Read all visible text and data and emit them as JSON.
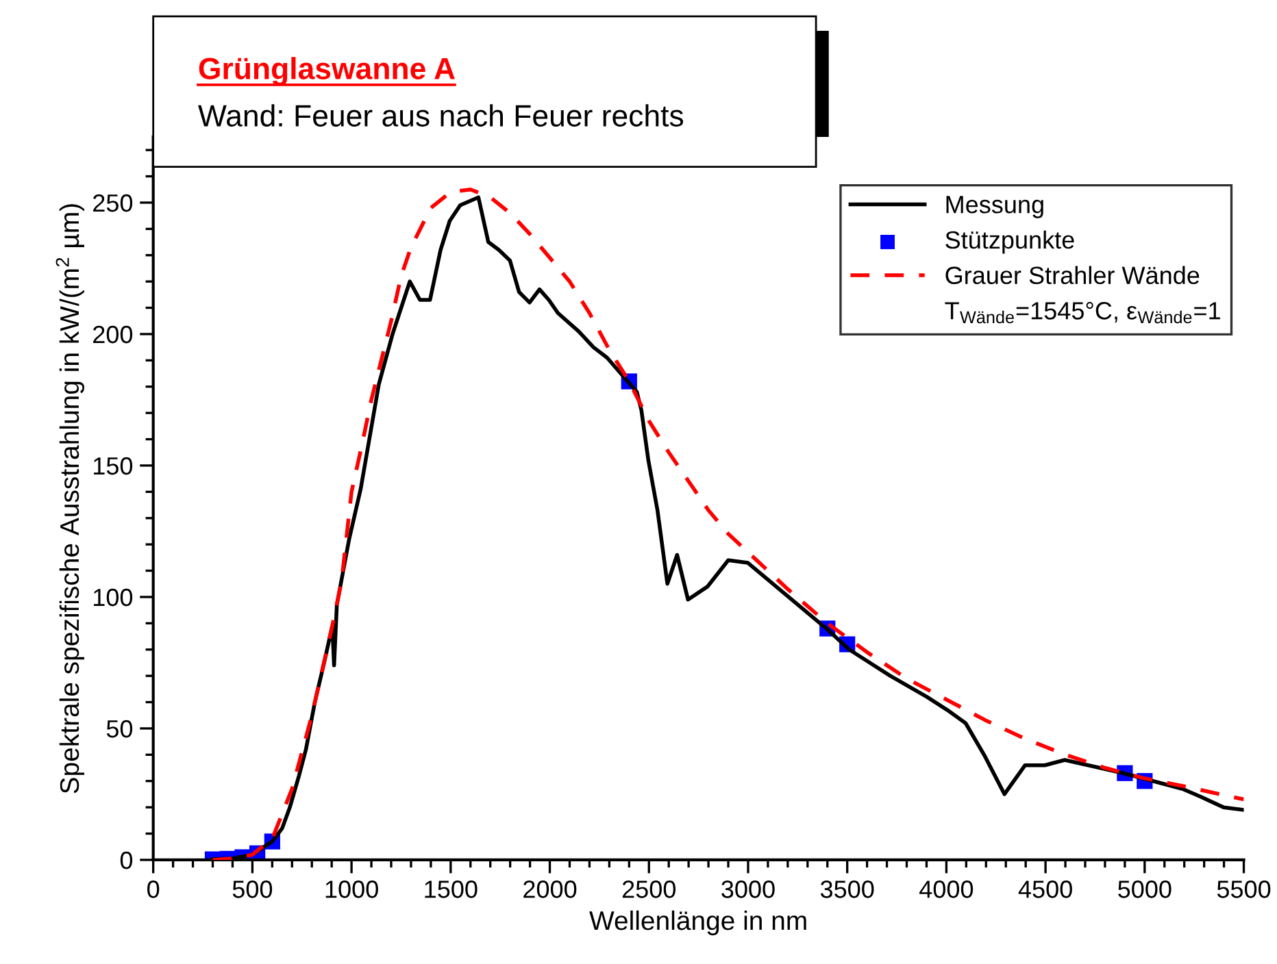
{
  "chart_data": {
    "type": "line",
    "title": "Grünglaswanne A",
    "subtitle": "Wand: Feuer aus nach Feuer rechts",
    "xlabel": "Wellenlänge in nm",
    "ylabel": "Spektrale spezifische Ausstrahlung in kW/(m$^{2}$ µm)",
    "xlim": [
      0,
      5500
    ],
    "xticks": [
      0,
      500,
      1000,
      1500,
      2000,
      2500,
      3000,
      3500,
      4000,
      4500,
      5000,
      5500
    ],
    "ylim": [
      0,
      275
    ],
    "yticks": [
      0,
      50,
      100,
      150,
      200,
      250
    ],
    "grid": false,
    "legend": "right",
    "annotations": [
      "T$_{Wände}$=1545°C, ε$_{Wände}$=1"
    ],
    "series": [
      {
        "name": "Messung",
        "color": "#000000",
        "line_style": "solid",
        "x": [
          300,
          400,
          500,
          600,
          650,
          689,
          735,
          770,
          815,
          862,
          903,
          912,
          926,
          988,
          1046,
          1138,
          1207,
          1294,
          1345,
          1396,
          1449,
          1495,
          1548,
          1640,
          1690,
          1743,
          1799,
          1845,
          1898,
          1948,
          1995,
          2041,
          2146,
          2220,
          2289,
          2358,
          2439,
          2462,
          2497,
          2543,
          2593,
          2642,
          2697,
          2796,
          2900,
          2999,
          3395,
          3510,
          3717,
          3902,
          4005,
          4097,
          4190,
          4293,
          4397,
          4496,
          4597,
          4892,
          5191,
          5283,
          5398,
          5500
        ],
        "values": [
          0.3,
          0.5,
          2,
          7,
          12,
          20,
          32,
          42,
          60,
          75,
          89,
          74,
          97,
          122,
          141,
          181,
          200,
          220,
          213,
          213,
          232,
          243,
          249,
          252,
          235,
          232,
          228,
          216,
          212,
          217,
          213,
          208,
          201,
          195,
          191,
          185,
          178,
          171,
          152,
          133,
          105,
          116,
          99,
          104,
          114,
          113,
          88,
          80,
          70,
          62,
          57,
          52,
          40,
          25,
          36,
          36,
          38,
          33,
          27,
          24,
          20,
          19
        ]
      },
      {
        "name": "Stützpunkte",
        "type": "scatter",
        "color": "#0000ff",
        "marker": "square",
        "x": [
          300,
          375,
          450,
          525,
          600,
          2400,
          3400,
          3500,
          4900,
          5000
        ],
        "values": [
          0.2,
          0.4,
          1,
          2.5,
          7,
          182,
          88,
          82,
          33,
          30
        ]
      },
      {
        "name": "Grauer Strahler Wände",
        "color": "#ff0000",
        "line_style": "dashed",
        "x": [
          300,
          400,
          500,
          600,
          700,
          800,
          900,
          950,
          1000,
          1050,
          1100,
          1200,
          1250,
          1300,
          1400,
          1500,
          1600,
          1700,
          1800,
          1900,
          2000,
          2100,
          2200,
          2300,
          2400,
          2500,
          2600,
          2700,
          2800,
          2900,
          3000,
          3200,
          3400,
          3600,
          3800,
          4000,
          4200,
          4400,
          4600,
          4800,
          5000,
          5200,
          5500
        ],
        "values": [
          0,
          0.5,
          2,
          8,
          27,
          55,
          88,
          106,
          140,
          157,
          175,
          205,
          222,
          233,
          248,
          254,
          255,
          252,
          246,
          238,
          229,
          220,
          208,
          194,
          182,
          167,
          155,
          144,
          133,
          124,
          117,
          103,
          90,
          79,
          69,
          61,
          53,
          46,
          40,
          35,
          31,
          28,
          23
        ]
      }
    ]
  }
}
